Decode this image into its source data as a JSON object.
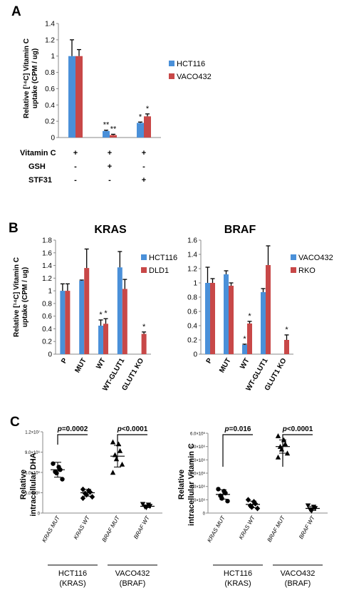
{
  "colors": {
    "blue": "#4a90d9",
    "red": "#c84848",
    "axis": "#888888",
    "dot": "#000000"
  },
  "panels": {
    "a": "A",
    "b": "B",
    "c": "C"
  },
  "chart_data": [
    {
      "id": "A",
      "type": "bar",
      "ylabel_line1": "Relative [¹⁴C] Vitamin C",
      "ylabel_line2": "uptake (CPM / ug)",
      "ylim": [
        0,
        1.4
      ],
      "yticks": [
        "0",
        "0.2",
        "0.4",
        "0.6",
        "0.8",
        "1",
        "1.2",
        "1.4"
      ],
      "grid": false,
      "legend_position": "right",
      "categories": [
        "",
        "",
        ""
      ],
      "series": [
        {
          "name": "HCT116",
          "values": [
            1.0,
            0.08,
            0.18
          ],
          "errors": [
            0.2,
            0.01,
            0.01
          ],
          "stars": [
            "",
            "**",
            "*"
          ]
        },
        {
          "name": "VACO432",
          "values": [
            1.0,
            0.03,
            0.26
          ],
          "errors": [
            0.08,
            0.01,
            0.03
          ],
          "stars": [
            "",
            "**",
            "*"
          ]
        }
      ],
      "condition_rows": [
        {
          "label": "Vitamin C",
          "values": [
            "+",
            "+",
            "+"
          ]
        },
        {
          "label": "GSH",
          "values": [
            "-",
            "+",
            "-"
          ]
        },
        {
          "label": "STF31",
          "values": [
            "-",
            "-",
            "+"
          ]
        }
      ]
    },
    {
      "id": "B-KRAS",
      "type": "bar",
      "title": "KRAS",
      "ylabel_line1": "Relative [¹⁴C] Vitamin C",
      "ylabel_line2": "uptake (CPM / ug)",
      "ylim": [
        0,
        1.8
      ],
      "yticks": [
        "0",
        "0.2",
        "0.4",
        "0.6",
        "0.8",
        "1",
        "1.2",
        "1.4",
        "1.6",
        "1.8"
      ],
      "grid": false,
      "legend_position": "right",
      "categories": [
        "P",
        "MUT",
        "WT",
        "WT-GLUT1",
        "GLUT1 KO"
      ],
      "series": [
        {
          "name": "HCT116",
          "values": [
            1.0,
            1.16,
            0.45,
            1.37,
            null
          ],
          "errors": [
            0.11,
            0.01,
            0.09,
            0.25,
            0
          ],
          "stars": [
            "",
            "",
            "*",
            "",
            ""
          ]
        },
        {
          "name": "DLD1",
          "values": [
            1.0,
            1.36,
            0.48,
            1.03,
            0.32
          ],
          "errors": [
            0.11,
            0.3,
            0.08,
            0.15,
            0.03
          ],
          "stars": [
            "",
            "",
            "*",
            "",
            "*"
          ]
        }
      ]
    },
    {
      "id": "B-BRAF",
      "type": "bar",
      "title": "BRAF",
      "ylim": [
        0,
        1.6
      ],
      "yticks": [
        "0",
        "0.2",
        "0.4",
        "0.6",
        "0.8",
        "1",
        "1.2",
        "1.4",
        "1.6"
      ],
      "grid": false,
      "legend_position": "right",
      "categories": [
        "P",
        "MUT",
        "WT",
        "WT-GLUT1",
        "GLUT1 KO"
      ],
      "series": [
        {
          "name": "VACO432",
          "values": [
            1.0,
            1.12,
            0.13,
            0.87,
            null
          ],
          "errors": [
            0.22,
            0.05,
            0.01,
            0.05,
            0
          ],
          "stars": [
            "",
            "",
            "*",
            "",
            ""
          ]
        },
        {
          "name": "RKO",
          "values": [
            1.0,
            0.96,
            0.43,
            1.25,
            0.2
          ],
          "errors": [
            0.06,
            0.04,
            0.03,
            0.27,
            0.07
          ],
          "stars": [
            "",
            "",
            "*",
            "",
            "*"
          ]
        }
      ]
    },
    {
      "id": "C-DHA",
      "type": "scatter",
      "ylabel_line1": "Relative",
      "ylabel_line2": "intracellular DHA",
      "ylim": [
        0,
        12000000
      ],
      "yticks": [
        "1.2×10⁷",
        "9.0×10⁶",
        "6.0×10⁶",
        "3.0×10⁶",
        "0"
      ],
      "categories": [
        "KRAS MUT",
        "KRAS WT",
        "BRAF MUT",
        "BRAF WT"
      ],
      "groups": [
        {
          "name": "KRAS MUT",
          "marker": "circle",
          "points": [
            7300000,
            6800000,
            6400000,
            6100000,
            5900000,
            5000000
          ],
          "mean": 6400000,
          "sd": 1100000
        },
        {
          "name": "KRAS WT",
          "marker": "diamond",
          "points": [
            3500000,
            3300000,
            3100000,
            2900000,
            2700000,
            2400000,
            2200000
          ],
          "mean": 3000000,
          "sd": 500000
        },
        {
          "name": "BRAF MUT",
          "marker": "triangle",
          "points": [
            10500000,
            10200000,
            9200000,
            8600000,
            8000000,
            7200000,
            6000000
          ],
          "mean": 8400000,
          "sd": 1600000
        },
        {
          "name": "BRAF WT",
          "marker": "triangle-down",
          "points": [
            1300000,
            1200000,
            1000000,
            900000,
            800000
          ],
          "mean": 1000000,
          "sd": 200000
        }
      ],
      "comparisons": [
        {
          "label": "p=0.0002",
          "p_prefix": "p",
          "p_rest": "=0.0002"
        },
        {
          "label": "p<0.0001",
          "p_prefix": "p",
          "p_rest": "<0.0001"
        }
      ],
      "group_labels": [
        {
          "line1": "HCT116",
          "line2": "(KRAS)"
        },
        {
          "line1": "VACO432",
          "line2": "(BRAF)"
        }
      ]
    },
    {
      "id": "C-VitC",
      "type": "scatter",
      "ylabel_line1": "Relative",
      "ylabel_line2": "intracellular Vitamin C",
      "ylim": [
        0,
        6000000
      ],
      "yticks": [
        "6.0×10⁶",
        "5.0×10⁶",
        "4.0×10⁶",
        "3.0×10⁶",
        "2.0×10⁶",
        "1.0×10⁶",
        "0"
      ],
      "categories": [
        "KRAS MUT",
        "KRAS WT",
        "BRAF MUT",
        "BRAF WT"
      ],
      "groups": [
        {
          "name": "KRAS MUT",
          "marker": "circle",
          "points": [
            1800000,
            1650000,
            1500000,
            1300000,
            1100000,
            900000
          ],
          "mean": 1400000,
          "sd": 350000
        },
        {
          "name": "KRAS WT",
          "marker": "diamond",
          "points": [
            1000000,
            850000,
            700000,
            550000,
            450000,
            350000
          ],
          "mean": 650000,
          "sd": 250000
        },
        {
          "name": "BRAF MUT",
          "marker": "triangle",
          "points": [
            5800000,
            5500000,
            5200000,
            5000000,
            4800000,
            4500000,
            4200000
          ],
          "mean": 5000000,
          "sd": 500000
        },
        {
          "name": "BRAF WT",
          "marker": "triangle-down",
          "points": [
            550000,
            450000,
            350000,
            250000,
            150000
          ],
          "mean": 350000,
          "sd": 150000
        }
      ],
      "comparisons": [
        {
          "label": "p=0.016",
          "p_prefix": "p",
          "p_rest": "=0.016"
        },
        {
          "label": "p<0.0001",
          "p_prefix": "p",
          "p_rest": "<0.0001"
        }
      ],
      "group_labels": [
        {
          "line1": "HCT116",
          "line2": "(KRAS)"
        },
        {
          "line1": "VACO432",
          "line2": "(BRAF)"
        }
      ]
    }
  ]
}
